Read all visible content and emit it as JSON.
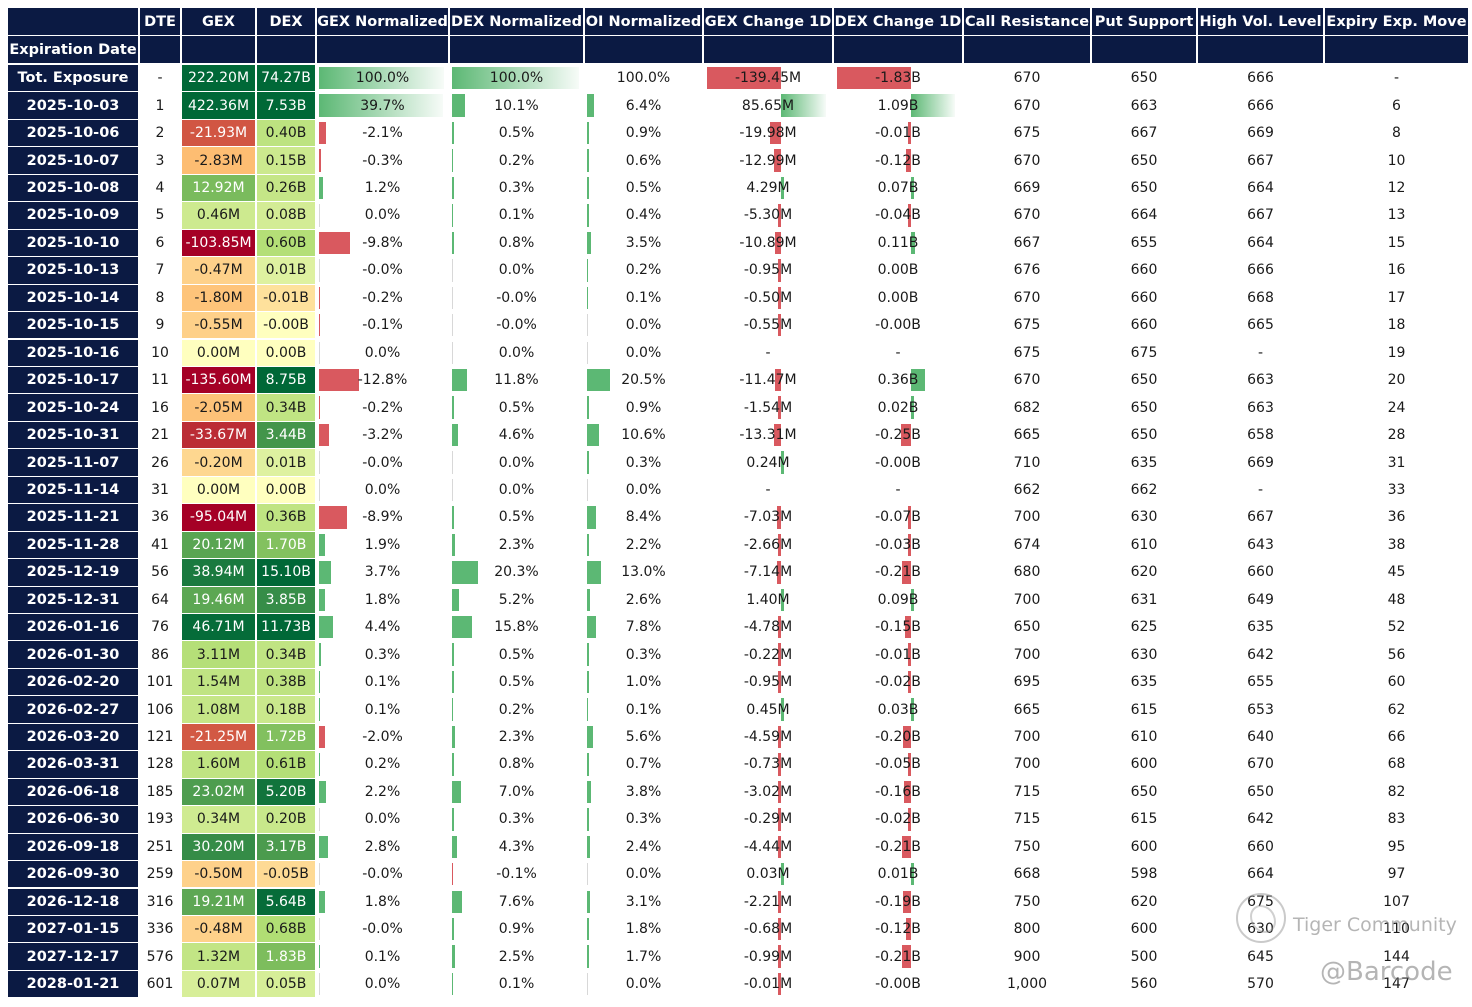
{
  "headers": {
    "date": "Expiration Date",
    "dte": "DTE",
    "gex": "GEX",
    "dex": "DEX",
    "gex_norm": "GEX Normalized",
    "dex_norm": "DEX Normalized",
    "oi_norm": "OI Normalized",
    "gex_change": "GEX Change 1D",
    "dex_change": "DEX Change 1D",
    "call_res": "Call Resistance",
    "put_sup": "Put Support",
    "high_vol": "High Vol. Level",
    "exp_move": "Expiry Exp. Move"
  },
  "colors": {
    "header_bg": "#0b1a43",
    "positive": "#5cb874",
    "negative": "#d9595f"
  },
  "watermark": {
    "line1": "Tiger Community",
    "line2": "@Barcode",
    "logo_icon": "tiger-community-logo"
  },
  "chart_data": {
    "type": "table",
    "columns": [
      "Expiration Date",
      "DTE",
      "GEX",
      "DEX",
      "GEX Normalized",
      "DEX Normalized",
      "OI Normalized",
      "GEX Change 1D",
      "DEX Change 1D",
      "Call Resistance",
      "Put Support",
      "High Vol. Level",
      "Expiry Exp. Move"
    ],
    "rows": [
      {
        "date": "Tot. Exposure",
        "dte": "-",
        "gex": "222.20M",
        "gex_v": 222.2,
        "dex": "74.27B",
        "dex_v": 74.27,
        "gn": "100.0%",
        "gn_v": 100.0,
        "dn": "100.0%",
        "dn_v": 100.0,
        "on": "100.0%",
        "on_v": 100.0,
        "gc": "-139.45M",
        "gc_v": -139.45,
        "dc": "-1.83B",
        "dc_v": -1.83,
        "cr": "670",
        "ps": "650",
        "hv": "666",
        "em": "-"
      },
      {
        "date": "2025-10-03",
        "dte": "1",
        "gex": "422.36M",
        "gex_v": 422.36,
        "dex": "7.53B",
        "dex_v": 7.53,
        "gn": "39.7%",
        "gn_v": 39.7,
        "dn": "10.1%",
        "dn_v": 10.1,
        "on": "6.4%",
        "on_v": 6.4,
        "gc": "85.65M",
        "gc_v": 85.65,
        "dc": "1.09B",
        "dc_v": 1.09,
        "cr": "670",
        "ps": "663",
        "hv": "666",
        "em": "6"
      },
      {
        "date": "2025-10-06",
        "dte": "2",
        "gex": "-21.93M",
        "gex_v": -21.93,
        "dex": "0.40B",
        "dex_v": 0.4,
        "gn": "-2.1%",
        "gn_v": -2.1,
        "dn": "0.5%",
        "dn_v": 0.5,
        "on": "0.9%",
        "on_v": 0.9,
        "gc": "-19.98M",
        "gc_v": -19.98,
        "dc": "-0.01B",
        "dc_v": -0.01,
        "cr": "675",
        "ps": "667",
        "hv": "669",
        "em": "8"
      },
      {
        "date": "2025-10-07",
        "dte": "3",
        "gex": "-2.83M",
        "gex_v": -2.83,
        "dex": "0.15B",
        "dex_v": 0.15,
        "gn": "-0.3%",
        "gn_v": -0.3,
        "dn": "0.2%",
        "dn_v": 0.2,
        "on": "0.6%",
        "on_v": 0.6,
        "gc": "-12.99M",
        "gc_v": -12.99,
        "dc": "-0.12B",
        "dc_v": -0.12,
        "cr": "670",
        "ps": "650",
        "hv": "667",
        "em": "10"
      },
      {
        "date": "2025-10-08",
        "dte": "4",
        "gex": "12.92M",
        "gex_v": 12.92,
        "dex": "0.26B",
        "dex_v": 0.26,
        "gn": "1.2%",
        "gn_v": 1.2,
        "dn": "0.3%",
        "dn_v": 0.3,
        "on": "0.5%",
        "on_v": 0.5,
        "gc": "4.29M",
        "gc_v": 4.29,
        "dc": "0.07B",
        "dc_v": 0.07,
        "cr": "669",
        "ps": "650",
        "hv": "664",
        "em": "12"
      },
      {
        "date": "2025-10-09",
        "dte": "5",
        "gex": "0.46M",
        "gex_v": 0.46,
        "dex": "0.08B",
        "dex_v": 0.08,
        "gn": "0.0%",
        "gn_v": 0.0,
        "dn": "0.1%",
        "dn_v": 0.1,
        "on": "0.4%",
        "on_v": 0.4,
        "gc": "-5.30M",
        "gc_v": -5.3,
        "dc": "-0.04B",
        "dc_v": -0.04,
        "cr": "670",
        "ps": "664",
        "hv": "667",
        "em": "13"
      },
      {
        "date": "2025-10-10",
        "dte": "6",
        "gex": "-103.85M",
        "gex_v": -103.85,
        "dex": "0.60B",
        "dex_v": 0.6,
        "gn": "-9.8%",
        "gn_v": -9.8,
        "dn": "0.8%",
        "dn_v": 0.8,
        "on": "3.5%",
        "on_v": 3.5,
        "gc": "-10.89M",
        "gc_v": -10.89,
        "dc": "0.11B",
        "dc_v": 0.11,
        "cr": "667",
        "ps": "655",
        "hv": "664",
        "em": "15"
      },
      {
        "date": "2025-10-13",
        "dte": "7",
        "gex": "-0.47M",
        "gex_v": -0.47,
        "dex": "0.01B",
        "dex_v": 0.01,
        "gn": "-0.0%",
        "gn_v": -0.0,
        "dn": "0.0%",
        "dn_v": 0.0,
        "on": "0.2%",
        "on_v": 0.2,
        "gc": "-0.95M",
        "gc_v": -0.95,
        "dc": "0.00B",
        "dc_v": 0.0,
        "cr": "676",
        "ps": "660",
        "hv": "666",
        "em": "16"
      },
      {
        "date": "2025-10-14",
        "dte": "8",
        "gex": "-1.80M",
        "gex_v": -1.8,
        "dex": "-0.01B",
        "dex_v": -0.01,
        "gn": "-0.2%",
        "gn_v": -0.2,
        "dn": "-0.0%",
        "dn_v": -0.0,
        "on": "0.1%",
        "on_v": 0.1,
        "gc": "-0.50M",
        "gc_v": -0.5,
        "dc": "0.00B",
        "dc_v": 0.0,
        "cr": "670",
        "ps": "660",
        "hv": "668",
        "em": "17"
      },
      {
        "date": "2025-10-15",
        "dte": "9",
        "gex": "-0.55M",
        "gex_v": -0.55,
        "dex": "-0.00B",
        "dex_v": -0.0,
        "gn": "-0.1%",
        "gn_v": -0.1,
        "dn": "-0.0%",
        "dn_v": -0.0,
        "on": "0.0%",
        "on_v": 0.0,
        "gc": "-0.55M",
        "gc_v": -0.55,
        "dc": "-0.00B",
        "dc_v": -0.0,
        "cr": "675",
        "ps": "660",
        "hv": "665",
        "em": "18"
      },
      {
        "date": "2025-10-16",
        "dte": "10",
        "gex": "0.00M",
        "gex_v": 0.0,
        "dex": "0.00B",
        "dex_v": 0.0,
        "gn": "0.0%",
        "gn_v": 0.0,
        "dn": "0.0%",
        "dn_v": 0.0,
        "on": "0.0%",
        "on_v": 0.0,
        "gc": "-",
        "gc_v": 0,
        "dc": "-",
        "dc_v": 0,
        "cr": "675",
        "ps": "675",
        "hv": "-",
        "em": "19"
      },
      {
        "date": "2025-10-17",
        "dte": "11",
        "gex": "-135.60M",
        "gex_v": -135.6,
        "dex": "8.75B",
        "dex_v": 8.75,
        "gn": "-12.8%",
        "gn_v": -12.8,
        "dn": "11.8%",
        "dn_v": 11.8,
        "on": "20.5%",
        "on_v": 20.5,
        "gc": "-11.47M",
        "gc_v": -11.47,
        "dc": "0.36B",
        "dc_v": 0.36,
        "cr": "670",
        "ps": "650",
        "hv": "663",
        "em": "20"
      },
      {
        "date": "2025-10-24",
        "dte": "16",
        "gex": "-2.05M",
        "gex_v": -2.05,
        "dex": "0.34B",
        "dex_v": 0.34,
        "gn": "-0.2%",
        "gn_v": -0.2,
        "dn": "0.5%",
        "dn_v": 0.5,
        "on": "0.9%",
        "on_v": 0.9,
        "gc": "-1.54M",
        "gc_v": -1.54,
        "dc": "0.02B",
        "dc_v": 0.02,
        "cr": "682",
        "ps": "650",
        "hv": "663",
        "em": "24"
      },
      {
        "date": "2025-10-31",
        "dte": "21",
        "gex": "-33.67M",
        "gex_v": -33.67,
        "dex": "3.44B",
        "dex_v": 3.44,
        "gn": "-3.2%",
        "gn_v": -3.2,
        "dn": "4.6%",
        "dn_v": 4.6,
        "on": "10.6%",
        "on_v": 10.6,
        "gc": "-13.31M",
        "gc_v": -13.31,
        "dc": "-0.25B",
        "dc_v": -0.25,
        "cr": "665",
        "ps": "650",
        "hv": "658",
        "em": "28"
      },
      {
        "date": "2025-11-07",
        "dte": "26",
        "gex": "-0.20M",
        "gex_v": -0.2,
        "dex": "0.01B",
        "dex_v": 0.01,
        "gn": "-0.0%",
        "gn_v": -0.0,
        "dn": "0.0%",
        "dn_v": 0.0,
        "on": "0.3%",
        "on_v": 0.3,
        "gc": "0.24M",
        "gc_v": 0.24,
        "dc": "-0.00B",
        "dc_v": -0.0,
        "cr": "710",
        "ps": "635",
        "hv": "669",
        "em": "31"
      },
      {
        "date": "2025-11-14",
        "dte": "31",
        "gex": "0.00M",
        "gex_v": 0.0,
        "dex": "0.00B",
        "dex_v": 0.0,
        "gn": "0.0%",
        "gn_v": 0.0,
        "dn": "0.0%",
        "dn_v": 0.0,
        "on": "0.0%",
        "on_v": 0.0,
        "gc": "-",
        "gc_v": 0,
        "dc": "-",
        "dc_v": 0,
        "cr": "662",
        "ps": "662",
        "hv": "-",
        "em": "33"
      },
      {
        "date": "2025-11-21",
        "dte": "36",
        "gex": "-95.04M",
        "gex_v": -95.04,
        "dex": "0.36B",
        "dex_v": 0.36,
        "gn": "-8.9%",
        "gn_v": -8.9,
        "dn": "0.5%",
        "dn_v": 0.5,
        "on": "8.4%",
        "on_v": 8.4,
        "gc": "-7.03M",
        "gc_v": -7.03,
        "dc": "-0.07B",
        "dc_v": -0.07,
        "cr": "700",
        "ps": "630",
        "hv": "667",
        "em": "36"
      },
      {
        "date": "2025-11-28",
        "dte": "41",
        "gex": "20.12M",
        "gex_v": 20.12,
        "dex": "1.70B",
        "dex_v": 1.7,
        "gn": "1.9%",
        "gn_v": 1.9,
        "dn": "2.3%",
        "dn_v": 2.3,
        "on": "2.2%",
        "on_v": 2.2,
        "gc": "-2.66M",
        "gc_v": -2.66,
        "dc": "-0.03B",
        "dc_v": -0.03,
        "cr": "674",
        "ps": "610",
        "hv": "643",
        "em": "38"
      },
      {
        "date": "2025-12-19",
        "dte": "56",
        "gex": "38.94M",
        "gex_v": 38.94,
        "dex": "15.10B",
        "dex_v": 15.1,
        "gn": "3.7%",
        "gn_v": 3.7,
        "dn": "20.3%",
        "dn_v": 20.3,
        "on": "13.0%",
        "on_v": 13.0,
        "gc": "-7.14M",
        "gc_v": -7.14,
        "dc": "-0.21B",
        "dc_v": -0.21,
        "cr": "680",
        "ps": "620",
        "hv": "660",
        "em": "45"
      },
      {
        "date": "2025-12-31",
        "dte": "64",
        "gex": "19.46M",
        "gex_v": 19.46,
        "dex": "3.85B",
        "dex_v": 3.85,
        "gn": "1.8%",
        "gn_v": 1.8,
        "dn": "5.2%",
        "dn_v": 5.2,
        "on": "2.6%",
        "on_v": 2.6,
        "gc": "1.40M",
        "gc_v": 1.4,
        "dc": "0.09B",
        "dc_v": 0.09,
        "cr": "700",
        "ps": "631",
        "hv": "649",
        "em": "48"
      },
      {
        "date": "2026-01-16",
        "dte": "76",
        "gex": "46.71M",
        "gex_v": 46.71,
        "dex": "11.73B",
        "dex_v": 11.73,
        "gn": "4.4%",
        "gn_v": 4.4,
        "dn": "15.8%",
        "dn_v": 15.8,
        "on": "7.8%",
        "on_v": 7.8,
        "gc": "-4.78M",
        "gc_v": -4.78,
        "dc": "-0.15B",
        "dc_v": -0.15,
        "cr": "650",
        "ps": "625",
        "hv": "635",
        "em": "52"
      },
      {
        "date": "2026-01-30",
        "dte": "86",
        "gex": "3.11M",
        "gex_v": 3.11,
        "dex": "0.34B",
        "dex_v": 0.34,
        "gn": "0.3%",
        "gn_v": 0.3,
        "dn": "0.5%",
        "dn_v": 0.5,
        "on": "0.3%",
        "on_v": 0.3,
        "gc": "-0.22M",
        "gc_v": -0.22,
        "dc": "-0.01B",
        "dc_v": -0.01,
        "cr": "700",
        "ps": "630",
        "hv": "642",
        "em": "56"
      },
      {
        "date": "2026-02-20",
        "dte": "101",
        "gex": "1.54M",
        "gex_v": 1.54,
        "dex": "0.38B",
        "dex_v": 0.38,
        "gn": "0.1%",
        "gn_v": 0.1,
        "dn": "0.5%",
        "dn_v": 0.5,
        "on": "1.0%",
        "on_v": 1.0,
        "gc": "-0.95M",
        "gc_v": -0.95,
        "dc": "-0.02B",
        "dc_v": -0.02,
        "cr": "695",
        "ps": "635",
        "hv": "655",
        "em": "60"
      },
      {
        "date": "2026-02-27",
        "dte": "106",
        "gex": "1.08M",
        "gex_v": 1.08,
        "dex": "0.18B",
        "dex_v": 0.18,
        "gn": "0.1%",
        "gn_v": 0.1,
        "dn": "0.2%",
        "dn_v": 0.2,
        "on": "0.1%",
        "on_v": 0.1,
        "gc": "0.45M",
        "gc_v": 0.45,
        "dc": "0.03B",
        "dc_v": 0.03,
        "cr": "665",
        "ps": "615",
        "hv": "653",
        "em": "62"
      },
      {
        "date": "2026-03-20",
        "dte": "121",
        "gex": "-21.25M",
        "gex_v": -21.25,
        "dex": "1.72B",
        "dex_v": 1.72,
        "gn": "-2.0%",
        "gn_v": -2.0,
        "dn": "2.3%",
        "dn_v": 2.3,
        "on": "5.6%",
        "on_v": 5.6,
        "gc": "-4.59M",
        "gc_v": -4.59,
        "dc": "-0.20B",
        "dc_v": -0.2,
        "cr": "700",
        "ps": "610",
        "hv": "640",
        "em": "66"
      },
      {
        "date": "2026-03-31",
        "dte": "128",
        "gex": "1.60M",
        "gex_v": 1.6,
        "dex": "0.61B",
        "dex_v": 0.61,
        "gn": "0.2%",
        "gn_v": 0.2,
        "dn": "0.8%",
        "dn_v": 0.8,
        "on": "0.7%",
        "on_v": 0.7,
        "gc": "-0.73M",
        "gc_v": -0.73,
        "dc": "-0.05B",
        "dc_v": -0.05,
        "cr": "700",
        "ps": "600",
        "hv": "670",
        "em": "68"
      },
      {
        "date": "2026-06-18",
        "dte": "185",
        "gex": "23.02M",
        "gex_v": 23.02,
        "dex": "5.20B",
        "dex_v": 5.2,
        "gn": "2.2%",
        "gn_v": 2.2,
        "dn": "7.0%",
        "dn_v": 7.0,
        "on": "3.8%",
        "on_v": 3.8,
        "gc": "-3.02M",
        "gc_v": -3.02,
        "dc": "-0.16B",
        "dc_v": -0.16,
        "cr": "715",
        "ps": "650",
        "hv": "650",
        "em": "82"
      },
      {
        "date": "2026-06-30",
        "dte": "193",
        "gex": "0.34M",
        "gex_v": 0.34,
        "dex": "0.20B",
        "dex_v": 0.2,
        "gn": "0.0%",
        "gn_v": 0.0,
        "dn": "0.3%",
        "dn_v": 0.3,
        "on": "0.3%",
        "on_v": 0.3,
        "gc": "-0.29M",
        "gc_v": -0.29,
        "dc": "-0.02B",
        "dc_v": -0.02,
        "cr": "715",
        "ps": "615",
        "hv": "642",
        "em": "83"
      },
      {
        "date": "2026-09-18",
        "dte": "251",
        "gex": "30.20M",
        "gex_v": 30.2,
        "dex": "3.17B",
        "dex_v": 3.17,
        "gn": "2.8%",
        "gn_v": 2.8,
        "dn": "4.3%",
        "dn_v": 4.3,
        "on": "2.4%",
        "on_v": 2.4,
        "gc": "-4.44M",
        "gc_v": -4.44,
        "dc": "-0.21B",
        "dc_v": -0.21,
        "cr": "750",
        "ps": "600",
        "hv": "660",
        "em": "95"
      },
      {
        "date": "2026-09-30",
        "dte": "259",
        "gex": "-0.50M",
        "gex_v": -0.5,
        "dex": "-0.05B",
        "dex_v": -0.05,
        "gn": "-0.0%",
        "gn_v": -0.0,
        "dn": "-0.1%",
        "dn_v": -0.1,
        "on": "0.0%",
        "on_v": 0.0,
        "gc": "0.03M",
        "gc_v": 0.03,
        "dc": "0.01B",
        "dc_v": 0.01,
        "cr": "668",
        "ps": "598",
        "hv": "664",
        "em": "97"
      },
      {
        "date": "2026-12-18",
        "dte": "316",
        "gex": "19.21M",
        "gex_v": 19.21,
        "dex": "5.64B",
        "dex_v": 5.64,
        "gn": "1.8%",
        "gn_v": 1.8,
        "dn": "7.6%",
        "dn_v": 7.6,
        "on": "3.1%",
        "on_v": 3.1,
        "gc": "-2.21M",
        "gc_v": -2.21,
        "dc": "-0.19B",
        "dc_v": -0.19,
        "cr": "750",
        "ps": "620",
        "hv": "675",
        "em": "107"
      },
      {
        "date": "2027-01-15",
        "dte": "336",
        "gex": "-0.48M",
        "gex_v": -0.48,
        "dex": "0.68B",
        "dex_v": 0.68,
        "gn": "-0.0%",
        "gn_v": -0.0,
        "dn": "0.9%",
        "dn_v": 0.9,
        "on": "1.8%",
        "on_v": 1.8,
        "gc": "-0.68M",
        "gc_v": -0.68,
        "dc": "-0.12B",
        "dc_v": -0.12,
        "cr": "800",
        "ps": "600",
        "hv": "630",
        "em": "110"
      },
      {
        "date": "2027-12-17",
        "dte": "576",
        "gex": "1.32M",
        "gex_v": 1.32,
        "dex": "1.83B",
        "dex_v": 1.83,
        "gn": "0.1%",
        "gn_v": 0.1,
        "dn": "2.5%",
        "dn_v": 2.5,
        "on": "1.7%",
        "on_v": 1.7,
        "gc": "-0.99M",
        "gc_v": -0.99,
        "dc": "-0.21B",
        "dc_v": -0.21,
        "cr": "900",
        "ps": "500",
        "hv": "645",
        "em": "144"
      },
      {
        "date": "2028-01-21",
        "dte": "601",
        "gex": "0.07M",
        "gex_v": 0.07,
        "dex": "0.05B",
        "dex_v": 0.05,
        "gn": "0.0%",
        "gn_v": 0.0,
        "dn": "0.1%",
        "dn_v": 0.1,
        "on": "0.0%",
        "on_v": 0.0,
        "gc": "-0.01M",
        "gc_v": -0.01,
        "dc": "-0.00B",
        "dc_v": -0.0,
        "cr": "1,000",
        "ps": "560",
        "hv": "570",
        "em": "147"
      }
    ]
  }
}
